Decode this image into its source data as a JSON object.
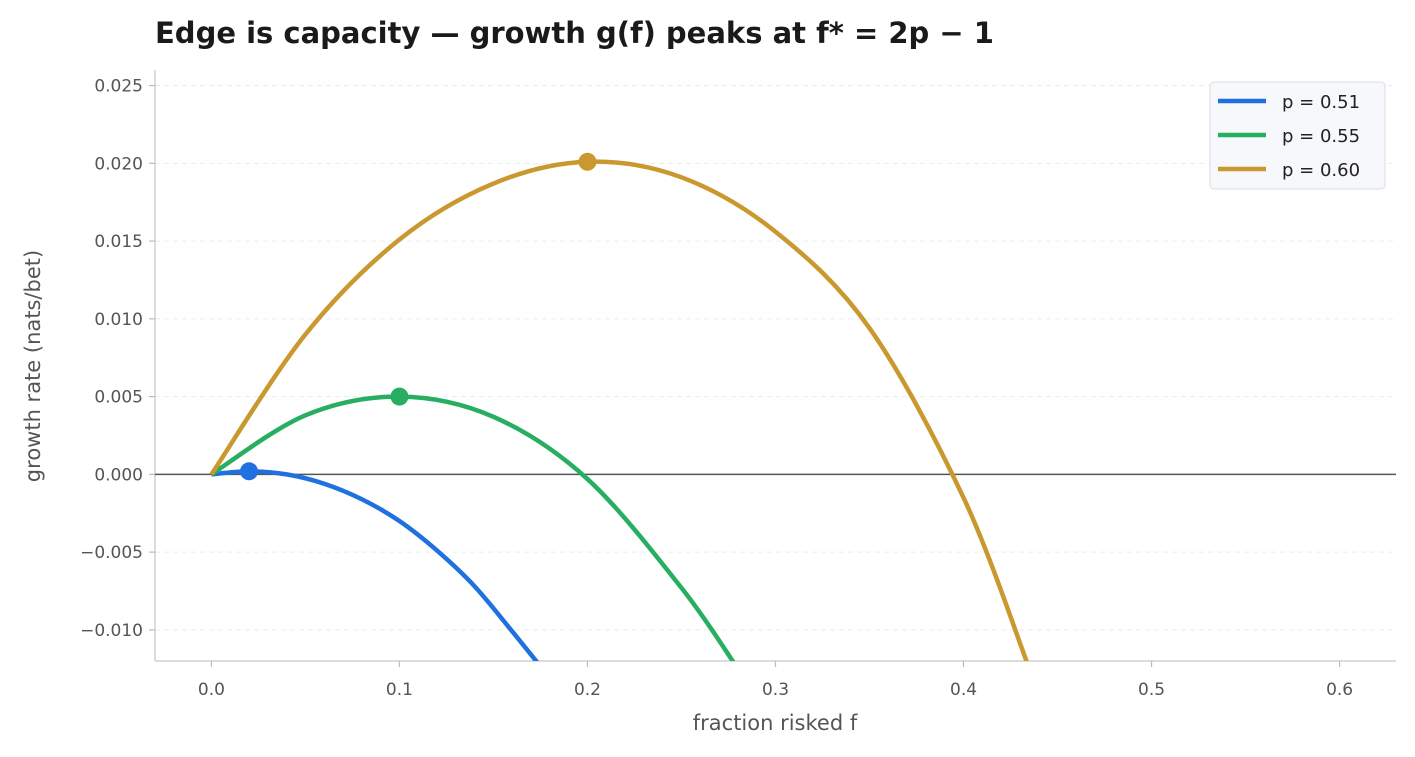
{
  "chart_data": {
    "type": "line",
    "title": "Edge is capacity — growth g(f) peaks at f* = 2p − 1",
    "xlabel": "fraction risked f",
    "ylabel": "growth rate (nats/bet)",
    "xlim": [
      -0.03,
      0.63
    ],
    "ylim": [
      -0.012,
      0.026
    ],
    "xticks": [
      0.0,
      0.1,
      0.2,
      0.3,
      0.4,
      0.5,
      0.6
    ],
    "xtick_labels": [
      "0.0",
      "0.1",
      "0.2",
      "0.3",
      "0.4",
      "0.5",
      "0.6"
    ],
    "yticks": [
      -0.01,
      -0.005,
      0.0,
      0.005,
      0.01,
      0.015,
      0.02,
      0.025
    ],
    "ytick_labels": [
      "−0.010",
      "−0.005",
      "0.000",
      "0.005",
      "0.010",
      "0.015",
      "0.020",
      "0.025"
    ],
    "grid": "horizontal, dashed",
    "reference_line_y": 0.0,
    "legend_position": "top-right",
    "series": [
      {
        "name": "p = 0.51",
        "color": "#2170e0",
        "x": [
          0.0,
          0.02,
          0.04,
          0.06,
          0.08,
          0.1,
          0.12,
          0.14,
          0.16,
          0.176
        ],
        "y": [
          0.0,
          0.0002,
          0.0,
          -0.0006,
          -0.0016,
          -0.003,
          -0.0049,
          -0.0072,
          -0.0101,
          -0.0125
        ],
        "peak": {
          "x": 0.02,
          "y": 0.0002
        }
      },
      {
        "name": "p = 0.55",
        "color": "#27ae60",
        "x": [
          0.0,
          0.05,
          0.1,
          0.15,
          0.2,
          0.25,
          0.28
        ],
        "y": [
          0.0,
          0.0038,
          0.005,
          0.0037,
          -0.0003,
          -0.0073,
          -0.0125
        ],
        "peak": {
          "x": 0.1,
          "y": 0.005
        }
      },
      {
        "name": "p = 0.60",
        "color": "#c9982e",
        "x": [
          0.0,
          0.05,
          0.1,
          0.15,
          0.2,
          0.25,
          0.3,
          0.35,
          0.4,
          0.435
        ],
        "y": [
          0.0,
          0.009,
          0.0151,
          0.0187,
          0.0201,
          0.0191,
          0.0156,
          0.0094,
          -0.0015,
          -0.0125
        ],
        "peak": {
          "x": 0.2,
          "y": 0.0201
        }
      }
    ]
  }
}
